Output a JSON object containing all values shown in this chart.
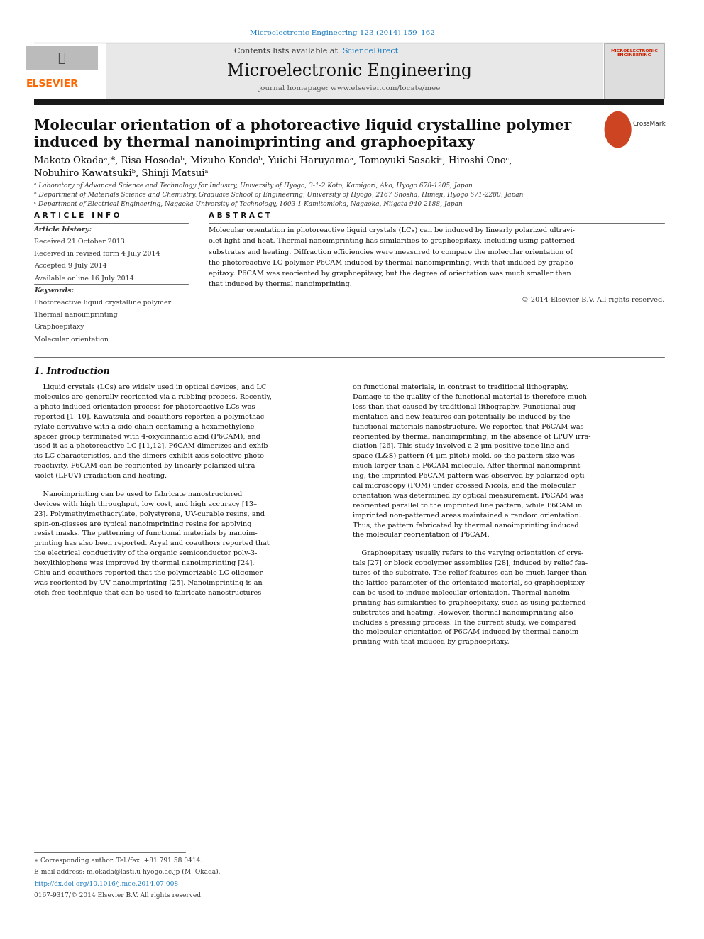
{
  "page_width": 9.92,
  "page_height": 13.23,
  "background_color": "#ffffff",
  "journal_ref_color": "#1a7bbf",
  "journal_ref": "Microelectronic Engineering 123 (2014) 159–162",
  "sciencedirect": "ScienceDirect",
  "journal_name": "Microelectronic Engineering",
  "journal_homepage": "journal homepage: www.elsevier.com/locate/mee",
  "elsevier_color": "#ff6600",
  "header_bg": "#e8e8e8",
  "black_bar_color": "#1a1a1a",
  "article_title_line1": "Molecular orientation of a photoreactive liquid crystalline polymer",
  "article_title_line2": "induced by thermal nanoimprinting and graphoepitaxy",
  "authors": "Makoto Okadaᵃ,*, Risa Hosodaᵇ, Mizuho Kondoᵇ, Yuichi Haruyamaᵃ, Tomoyuki Sasakiᶜ, Hiroshi Onoᶜ,",
  "authors2": "Nobuhiro Kawatsukiᵇ, Shinji Matsuiᵃ",
  "affil_a": "ᵃ Laboratory of Advanced Science and Technology for Industry, University of Hyogo, 3-1-2 Koto, Kamigori, Ako, Hyogo 678-1205, Japan",
  "affil_b": "ᵇ Department of Materials Science and Chemistry, Graduate School of Engineering, University of Hyogo, 2167 Shosha, Himeji, Hyogo 671-2280, Japan",
  "affil_c": "ᶜ Department of Electrical Engineering, Nagaoka University of Technology, 1603-1 Kamitomioka, Nagaoka, Niigata 940-2188, Japan",
  "article_info_header": "A R T I C L E   I N F O",
  "abstract_header": "A B S T R A C T",
  "article_history_label": "Article history:",
  "received": "Received 21 October 2013",
  "revised": "Received in revised form 4 July 2014",
  "accepted": "Accepted 9 July 2014",
  "online": "Available online 16 July 2014",
  "keywords_label": "Keywords:",
  "kw1": "Photoreactive liquid crystalline polymer",
  "kw2": "Thermal nanoimprinting",
  "kw3": "Graphoepitaxy",
  "kw4": "Molecular orientation",
  "copyright": "© 2014 Elsevier B.V. All rights reserved.",
  "section1_title": "1. Introduction",
  "footnote_corresponding": "∗ Corresponding author. Tel./fax: +81 791 58 0414.",
  "footnote_email": "E-mail address: m.okada@lasti.u-hyogo.ac.jp (M. Okada).",
  "doi_line": "http://dx.doi.org/10.1016/j.mee.2014.07.008",
  "issn_line": "0167-9317/© 2014 Elsevier B.V. All rights reserved.",
  "link_color": "#1a7bbf",
  "abstract_lines": [
    "Molecular orientation in photoreactive liquid crystals (LCs) can be induced by linearly polarized ultravi-",
    "olet light and heat. Thermal nanoimprinting has similarities to graphoepitaxy, including using patterned",
    "substrates and heating. Diffraction efficiencies were measured to compare the molecular orientation of",
    "the photoreactive LC polymer P6CAM induced by thermal nanoimprinting, with that induced by grapho-",
    "epitaxy. P6CAM was reoriented by graphoepitaxy, but the degree of orientation was much smaller than",
    "that induced by thermal nanoimprinting."
  ],
  "intro1_lines": [
    "    Liquid crystals (LCs) are widely used in optical devices, and LC",
    "molecules are generally reoriented via a rubbing process. Recently,",
    "a photo-induced orientation process for photoreactive LCs was",
    "reported [1–10]. Kawatsuki and coauthors reported a polymethac-",
    "rylate derivative with a side chain containing a hexamethylene",
    "spacer group terminated with 4-oxycinnamic acid (P6CAM), and",
    "used it as a photoreactive LC [11,12]. P6CAM dimerizes and exhib-",
    "its LC characteristics, and the dimers exhibit axis-selective photo-",
    "reactivity. P6CAM can be reoriented by linearly polarized ultra",
    "violet (LPUV) irradiation and heating."
  ],
  "intro2_lines": [
    "    Nanoimprinting can be used to fabricate nanostructured",
    "devices with high throughput, low cost, and high accuracy [13–",
    "23]. Polymethylmethacrylate, polystyrene, UV-curable resins, and",
    "spin-on-glasses are typical nanoimprinting resins for applying",
    "resist masks. The patterning of functional materials by nanoim-",
    "printing has also been reported. Aryal and coauthors reported that",
    "the electrical conductivity of the organic semiconductor poly-3-",
    "hexylthiophene was improved by thermal nanoimprinting [24].",
    "Chiu and coauthors reported that the polymerizable LC oligomer",
    "was reoriented by UV nanoimprinting [25]. Nanoimprinting is an",
    "etch-free technique that can be used to fabricate nanostructures"
  ],
  "intro_c2_p1_lines": [
    "on functional materials, in contrast to traditional lithography.",
    "Damage to the quality of the functional material is therefore much",
    "less than that caused by traditional lithography. Functional aug-",
    "mentation and new features can potentially be induced by the",
    "functional materials nanostructure. We reported that P6CAM was",
    "reoriented by thermal nanoimprinting, in the absence of LPUV irra-",
    "diation [26]. This study involved a 2-μm positive tone line and",
    "space (L&S) pattern (4-μm pitch) mold, so the pattern size was",
    "much larger than a P6CAM molecule. After thermal nanoimprint-",
    "ing, the imprinted P6CAM pattern was observed by polarized opti-",
    "cal microscopy (POM) under crossed Nicols, and the molecular",
    "orientation was determined by optical measurement. P6CAM was",
    "reoriented parallel to the imprinted line pattern, while P6CAM in",
    "imprinted non-patterned areas maintained a random orientation.",
    "Thus, the pattern fabricated by thermal nanoimprinting induced",
    "the molecular reorientation of P6CAM."
  ],
  "intro_c2_p2_lines": [
    "    Graphoepitaxy usually refers to the varying orientation of crys-",
    "tals [27] or block copolymer assemblies [28], induced by relief fea-",
    "tures of the substrate. The relief features can be much larger than",
    "the lattice parameter of the orientated material, so graphoepitaxy",
    "can be used to induce molecular orientation. Thermal nanoim-",
    "printing has similarities to graphoepitaxy, such as using patterned",
    "substrates and heating. However, thermal nanoimprinting also",
    "includes a pressing process. In the current study, we compared",
    "the molecular orientation of P6CAM induced by thermal nanoim-",
    "printing with that induced by graphoepitaxy."
  ]
}
